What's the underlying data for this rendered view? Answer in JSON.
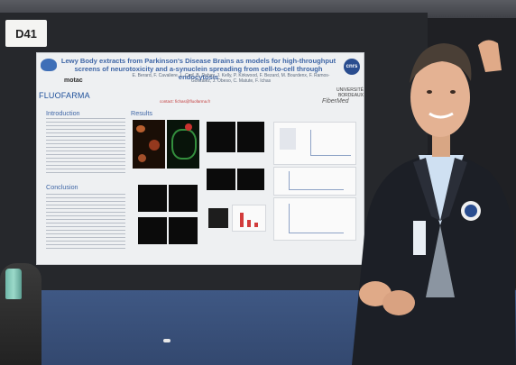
{
  "booth": {
    "number": "D41"
  },
  "poster": {
    "title": "Lewy Body extracts from Parkinson's Disease Brains as models for high-throughput screens of neurotoxicity and a-synuclein spreading from cell-to-cell through endocytosis",
    "authors": "E. Berard, F. Cavaliere, L. Cerf, B. Dehay, J. Kelly, P. Kirkwood, F. Bezard, M. Bourdenx, F. Ramos-Gonzalez, J. Obeso, C. Matute, F. Ichas",
    "email": "contact: fichas@fluofarma.fr",
    "logos": {
      "top_left": "",
      "motac": "motac",
      "fluofarma": "FLUOFARMA",
      "cnrs": "cnrs",
      "univ": "UNIVERSITÉ BORDEAUX",
      "fibermed": "FiberMed"
    },
    "sections": {
      "introduction": "Introduction",
      "results": "Results",
      "conclusion": "Conclusion"
    }
  },
  "colors": {
    "poster_title": "#3f66a6",
    "board": "#26282c",
    "carpet": "#3f5884",
    "jacket": "#1c1f26"
  }
}
